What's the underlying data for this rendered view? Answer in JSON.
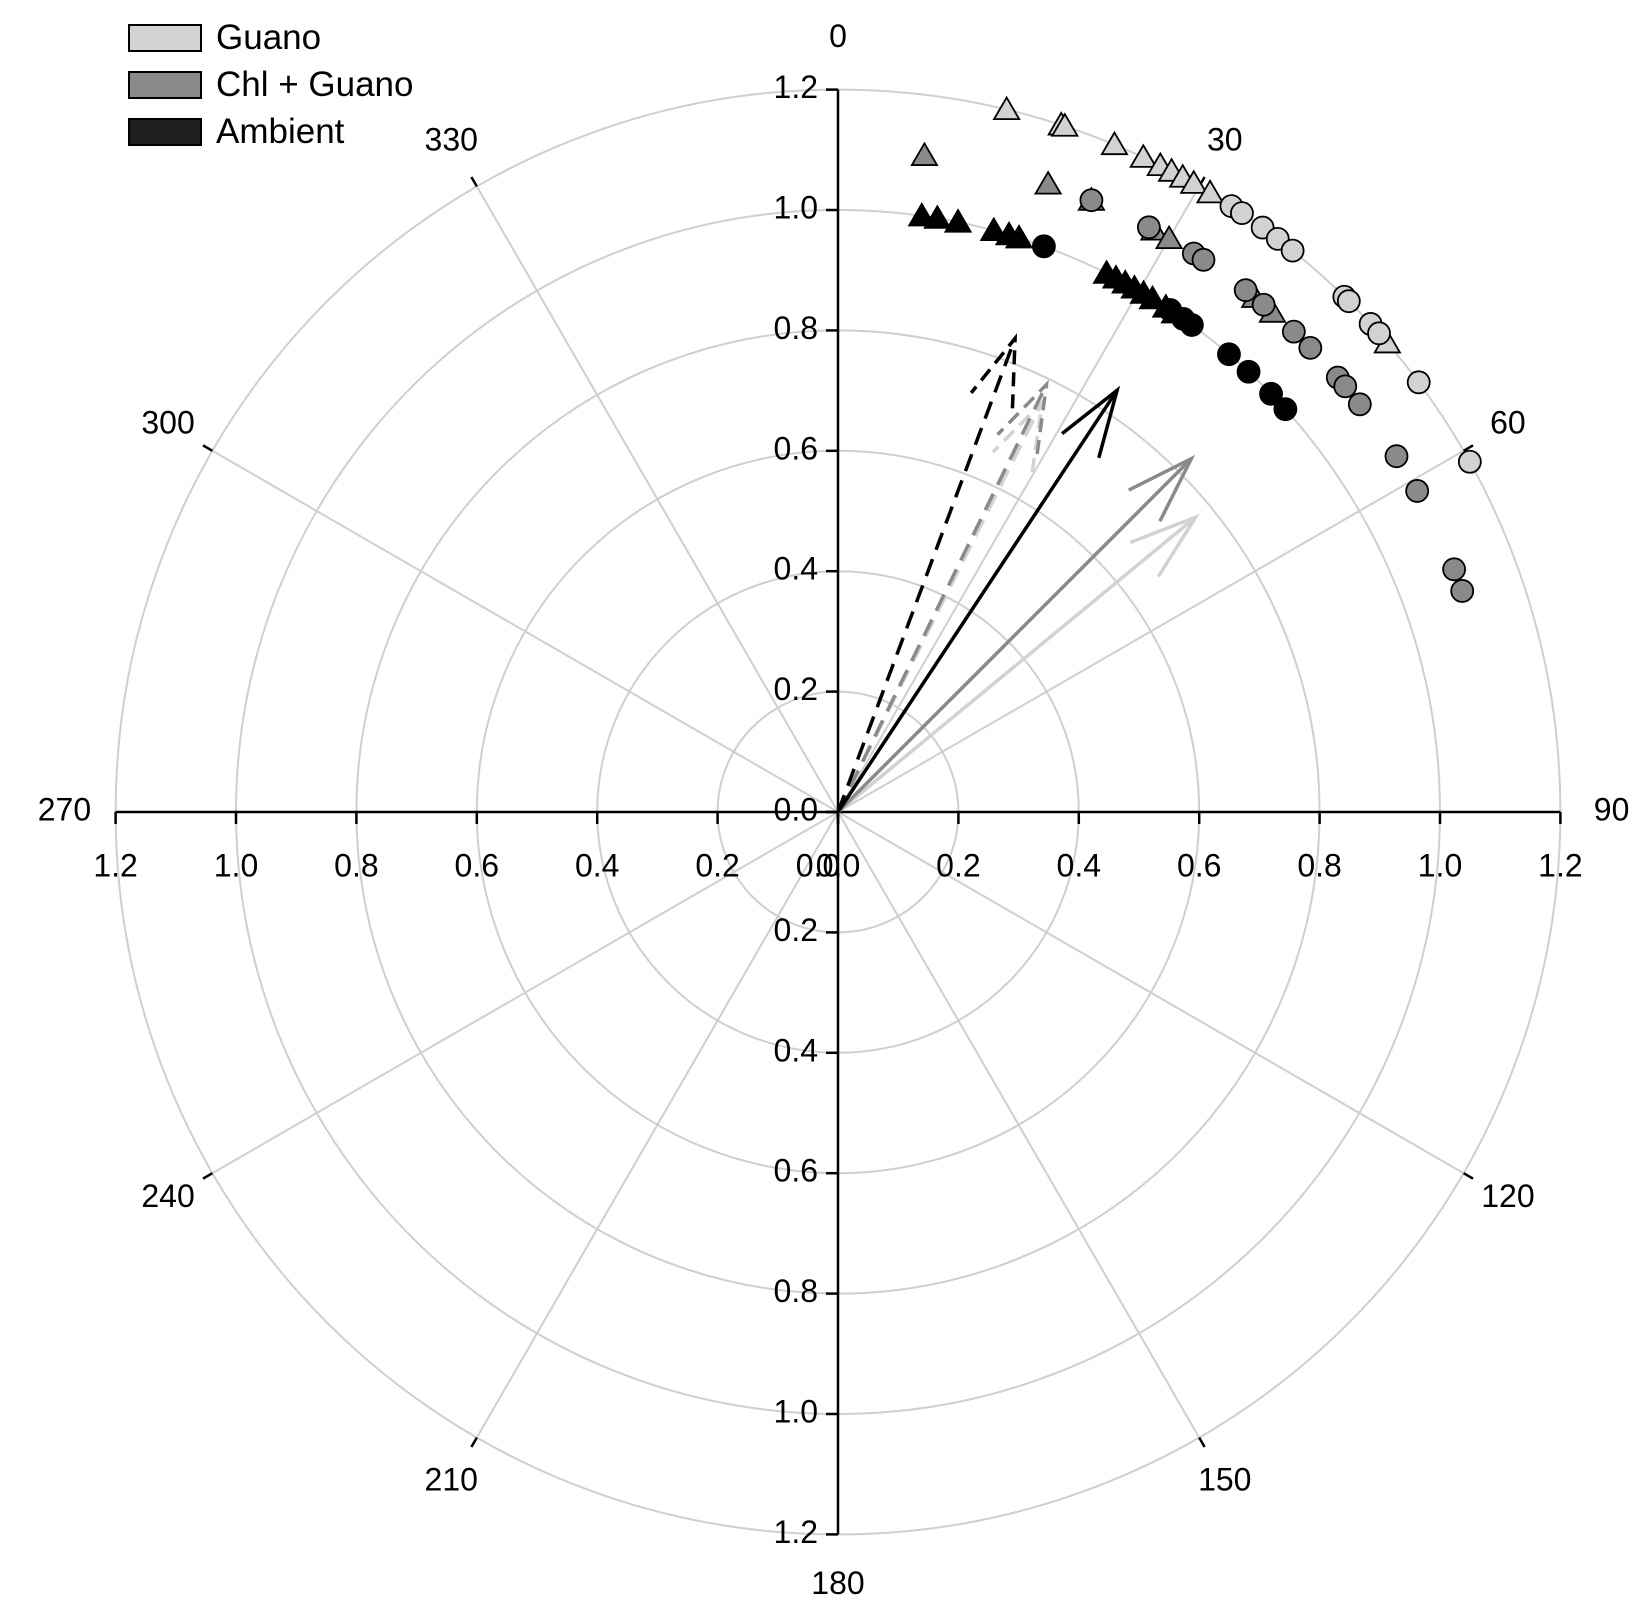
{
  "chart_data": {
    "type": "polar",
    "angular_ticks": [
      "0",
      "30",
      "60",
      "90",
      "120",
      "150",
      "180",
      "210",
      "240",
      "270",
      "300",
      "330"
    ],
    "radial_ticks": [
      "0.0",
      "0.2",
      "0.4",
      "0.6",
      "0.8",
      "1.0",
      "1.2"
    ],
    "rlim": [
      0,
      1.2
    ],
    "grid": true,
    "legend": {
      "placement": "top-left",
      "items": [
        {
          "name": "Guano",
          "color": "#d2d2d2"
        },
        {
          "name": "Chl + Guano",
          "color": "#8a8a8a"
        },
        {
          "name": "Ambient",
          "color": "#1e1e1e"
        }
      ]
    },
    "series": [
      {
        "name": "Guano",
        "color": "#d2d2d2",
        "triangles": [
          {
            "angle": 13.5,
            "r": 1.2
          },
          {
            "angle": 18.0,
            "r": 1.2
          },
          {
            "angle": 18.3,
            "r": 1.2
          },
          {
            "angle": 22.5,
            "r": 1.2
          },
          {
            "angle": 25.0,
            "r": 1.2
          },
          {
            "angle": 26.5,
            "r": 1.2
          },
          {
            "angle": 27.5,
            "r": 1.2
          },
          {
            "angle": 28.5,
            "r": 1.2
          },
          {
            "angle": 29.5,
            "r": 1.2
          },
          {
            "angle": 31.0,
            "r": 1.2
          },
          {
            "angle": 49.5,
            "r": 1.2
          }
        ],
        "circles": [
          {
            "angle": 33.0,
            "r": 1.2
          },
          {
            "angle": 34.0,
            "r": 1.2
          },
          {
            "angle": 36.0,
            "r": 1.2
          },
          {
            "angle": 37.5,
            "r": 1.2
          },
          {
            "angle": 39.0,
            "r": 1.2
          },
          {
            "angle": 44.5,
            "r": 1.2
          },
          {
            "angle": 45.0,
            "r": 1.2
          },
          {
            "angle": 47.5,
            "r": 1.2
          },
          {
            "angle": 48.5,
            "r": 1.2
          },
          {
            "angle": 53.5,
            "r": 1.2
          },
          {
            "angle": 61.0,
            "r": 1.2
          }
        ],
        "arrows": [
          {
            "angle": 50.5,
            "r": 0.77,
            "style": "solid"
          },
          {
            "angle": 26.5,
            "r": 0.76,
            "style": "dashed"
          }
        ]
      },
      {
        "name": "Chl + Guano",
        "color": "#8a8a8a",
        "triangles": [
          {
            "angle": 7.5,
            "r": 1.1
          },
          {
            "angle": 18.5,
            "r": 1.1
          },
          {
            "angle": 22.5,
            "r": 1.1
          },
          {
            "angle": 28.5,
            "r": 1.1
          },
          {
            "angle": 30.0,
            "r": 1.1
          },
          {
            "angle": 39.0,
            "r": 1.1
          },
          {
            "angle": 41.0,
            "r": 1.1
          }
        ],
        "circles": [
          {
            "angle": 22.5,
            "r": 1.1
          },
          {
            "angle": 28.0,
            "r": 1.1
          },
          {
            "angle": 32.5,
            "r": 1.1
          },
          {
            "angle": 33.5,
            "r": 1.1
          },
          {
            "angle": 38.0,
            "r": 1.1
          },
          {
            "angle": 40.0,
            "r": 1.1
          },
          {
            "angle": 43.5,
            "r": 1.1
          },
          {
            "angle": 45.5,
            "r": 1.1
          },
          {
            "angle": 49.0,
            "r": 1.1
          },
          {
            "angle": 50.0,
            "r": 1.1
          },
          {
            "angle": 52.0,
            "r": 1.1
          },
          {
            "angle": 57.5,
            "r": 1.1
          },
          {
            "angle": 61.0,
            "r": 1.1
          },
          {
            "angle": 68.5,
            "r": 1.1
          },
          {
            "angle": 70.5,
            "r": 1.1
          }
        ],
        "arrows": [
          {
            "angle": 45.0,
            "r": 0.83,
            "style": "solid"
          },
          {
            "angle": 26.0,
            "r": 0.79,
            "style": "dashed"
          }
        ]
      },
      {
        "name": "Ambient",
        "color": "#000000",
        "triangles": [
          {
            "angle": 8.0,
            "r": 1.0
          },
          {
            "angle": 9.5,
            "r": 1.0
          },
          {
            "angle": 11.5,
            "r": 1.0
          },
          {
            "angle": 15.0,
            "r": 1.0
          },
          {
            "angle": 16.5,
            "r": 1.0
          },
          {
            "angle": 17.5,
            "r": 1.0
          },
          {
            "angle": 26.5,
            "r": 1.0
          },
          {
            "angle": 27.5,
            "r": 1.0
          },
          {
            "angle": 28.5,
            "r": 1.0
          },
          {
            "angle": 29.5,
            "r": 1.0
          },
          {
            "angle": 30.5,
            "r": 1.0
          },
          {
            "angle": 31.5,
            "r": 1.0
          },
          {
            "angle": 33.0,
            "r": 1.0
          },
          {
            "angle": 34.0,
            "r": 1.0
          }
        ],
        "circles": [
          {
            "angle": 20.0,
            "r": 1.0
          },
          {
            "angle": 33.5,
            "r": 1.0
          },
          {
            "angle": 35.0,
            "r": 1.0
          },
          {
            "angle": 36.0,
            "r": 1.0
          },
          {
            "angle": 40.5,
            "r": 1.0
          },
          {
            "angle": 43.0,
            "r": 1.0
          },
          {
            "angle": 46.0,
            "r": 1.0
          },
          {
            "angle": 48.0,
            "r": 1.0
          }
        ],
        "arrows": [
          {
            "angle": 33.5,
            "r": 0.84,
            "style": "solid"
          },
          {
            "angle": 20.5,
            "r": 0.84,
            "style": "dashed"
          }
        ]
      }
    ]
  }
}
